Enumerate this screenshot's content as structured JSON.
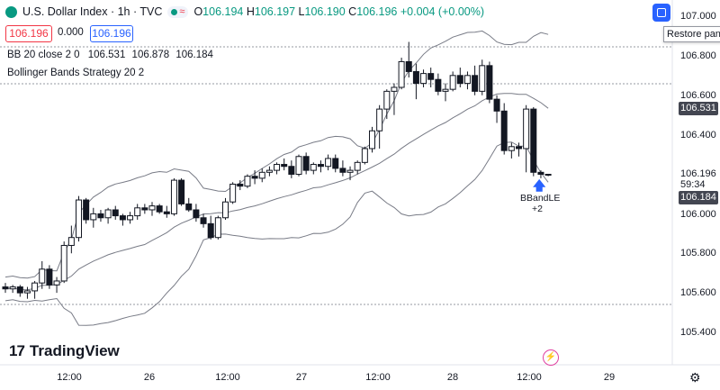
{
  "header": {
    "symbol_title": "U.S. Dollar Index · 1h · TVC",
    "ohlc_o_label": "O",
    "ohlc_o": "106.194",
    "ohlc_h_label": "H",
    "ohlc_h": "106.197",
    "ohlc_l_label": "L",
    "ohlc_l": "106.190",
    "ohlc_c_label": "C",
    "ohlc_c": "106.196",
    "change": "+0.004 (+0.00%)"
  },
  "trade_panel": {
    "sell_price": "106.196",
    "spread": "0.000",
    "buy_price": "106.196"
  },
  "indicators": {
    "bb_name": "BB 20 close 2 0",
    "bb_values": [
      "106.531",
      "106.878",
      "106.184"
    ],
    "strategy_name": "Bollinger Bands Strategy 20 2"
  },
  "tooltip": {
    "restore_pane": "Restore pane"
  },
  "price_axis": {
    "labels": [
      "107.000",
      "106.800",
      "106.600",
      "106.400",
      "106.196",
      "106.000",
      "105.800",
      "105.600",
      "105.400"
    ],
    "upper_tag": "106.531",
    "lower_tag": "106.184",
    "countdown": "59:34"
  },
  "time_axis": {
    "labels": [
      "12:00",
      "26",
      "12:00",
      "27",
      "12:00",
      "28",
      "12:00",
      "29"
    ]
  },
  "signal": {
    "label": "BBandLE",
    "qty": "+2"
  },
  "branding": {
    "logo_text": "TradingView"
  },
  "colors": {
    "up": "#089981",
    "down": "#f23645",
    "accent": "#2962ff",
    "candle": "#131722"
  },
  "icons": {
    "restore": "restore-pane-icon",
    "settings": "gear-icon",
    "replay": "lightning-icon"
  },
  "chart_data": {
    "type": "candlestick",
    "ylim": [
      105.3,
      107.05
    ],
    "candles": [
      [
        105.63,
        105.65,
        105.6,
        105.62
      ],
      [
        105.62,
        105.64,
        105.6,
        105.63
      ],
      [
        105.63,
        105.64,
        105.58,
        105.6
      ],
      [
        105.6,
        105.63,
        105.57,
        105.61
      ],
      [
        105.61,
        105.66,
        105.57,
        105.65
      ],
      [
        105.65,
        105.76,
        105.62,
        105.72
      ],
      [
        105.72,
        105.74,
        105.62,
        105.64
      ],
      [
        105.64,
        105.68,
        105.6,
        105.66
      ],
      [
        105.66,
        105.86,
        105.65,
        105.84
      ],
      [
        105.84,
        105.94,
        105.8,
        105.88
      ],
      [
        105.88,
        106.09,
        105.86,
        106.07
      ],
      [
        106.07,
        106.08,
        105.95,
        105.97
      ],
      [
        105.97,
        106.03,
        105.93,
        106.0
      ],
      [
        106.0,
        106.02,
        105.96,
        105.98
      ],
      [
        105.98,
        106.03,
        105.95,
        106.02
      ],
      [
        106.02,
        106.04,
        105.97,
        105.99
      ],
      [
        105.99,
        106.0,
        105.94,
        105.97
      ],
      [
        105.97,
        106.01,
        105.95,
        105.99
      ],
      [
        105.99,
        106.05,
        105.97,
        106.03
      ],
      [
        106.03,
        106.05,
        106.0,
        106.02
      ],
      [
        106.02,
        106.06,
        105.99,
        106.04
      ],
      [
        106.04,
        106.05,
        106.0,
        106.01
      ],
      [
        106.01,
        106.04,
        105.98,
        106.0
      ],
      [
        106.0,
        106.18,
        105.99,
        106.17
      ],
      [
        106.17,
        106.18,
        106.04,
        106.05
      ],
      [
        106.05,
        106.08,
        106.01,
        106.02
      ],
      [
        106.02,
        106.05,
        105.96,
        105.98
      ],
      [
        105.98,
        106.0,
        105.93,
        105.95
      ],
      [
        105.95,
        105.99,
        105.87,
        105.88
      ],
      [
        105.88,
        105.99,
        105.87,
        105.98
      ],
      [
        105.98,
        106.08,
        105.97,
        106.06
      ],
      [
        106.06,
        106.16,
        106.05,
        106.15
      ],
      [
        106.15,
        106.17,
        106.12,
        106.14
      ],
      [
        106.14,
        106.2,
        106.13,
        106.19
      ],
      [
        106.19,
        106.22,
        106.15,
        106.18
      ],
      [
        106.18,
        106.23,
        106.16,
        106.21
      ],
      [
        106.21,
        106.24,
        106.19,
        106.22
      ],
      [
        106.22,
        106.26,
        106.2,
        106.25
      ],
      [
        106.25,
        106.28,
        106.22,
        106.24
      ],
      [
        106.24,
        106.27,
        106.18,
        106.2
      ],
      [
        106.2,
        106.3,
        106.19,
        106.29
      ],
      [
        106.29,
        106.31,
        106.2,
        106.22
      ],
      [
        106.22,
        106.26,
        106.2,
        106.25
      ],
      [
        106.25,
        106.27,
        106.21,
        106.24
      ],
      [
        106.24,
        106.3,
        106.22,
        106.28
      ],
      [
        106.28,
        106.3,
        106.21,
        106.23
      ],
      [
        106.23,
        106.27,
        106.19,
        106.21
      ],
      [
        106.21,
        106.24,
        106.17,
        106.22
      ],
      [
        106.22,
        106.27,
        106.2,
        106.26
      ],
      [
        106.26,
        106.34,
        106.25,
        106.33
      ],
      [
        106.33,
        106.44,
        106.31,
        106.42
      ],
      [
        106.42,
        106.55,
        106.33,
        106.53
      ],
      [
        106.53,
        106.63,
        106.48,
        106.62
      ],
      [
        106.62,
        106.66,
        106.5,
        106.64
      ],
      [
        106.64,
        106.79,
        106.63,
        106.77
      ],
      [
        106.77,
        106.87,
        106.69,
        106.72
      ],
      [
        106.72,
        106.76,
        106.58,
        106.66
      ],
      [
        106.66,
        106.73,
        106.64,
        106.71
      ],
      [
        106.71,
        106.74,
        106.64,
        106.68
      ],
      [
        106.68,
        106.71,
        106.6,
        106.62
      ],
      [
        106.62,
        106.66,
        106.57,
        106.63
      ],
      [
        106.63,
        106.72,
        106.62,
        106.7
      ],
      [
        106.7,
        106.74,
        106.64,
        106.66
      ],
      [
        106.66,
        106.72,
        106.63,
        106.7
      ],
      [
        106.7,
        106.75,
        106.6,
        106.62
      ],
      [
        106.62,
        106.78,
        106.6,
        106.75
      ],
      [
        106.75,
        106.77,
        106.56,
        106.58
      ],
      [
        106.58,
        106.6,
        106.46,
        106.52
      ],
      [
        106.52,
        106.56,
        106.3,
        106.32
      ],
      [
        106.32,
        106.36,
        106.28,
        106.34
      ],
      [
        106.34,
        106.36,
        106.29,
        106.33
      ],
      [
        106.33,
        106.55,
        106.21,
        106.53
      ],
      [
        106.53,
        106.54,
        106.19,
        106.21
      ],
      [
        106.21,
        106.22,
        106.18,
        106.2
      ],
      [
        106.2,
        106.2,
        106.19,
        106.2
      ]
    ],
    "bb_basis_last": 106.531,
    "bb_upper_last": 106.878,
    "bb_lower_last": 106.184
  }
}
